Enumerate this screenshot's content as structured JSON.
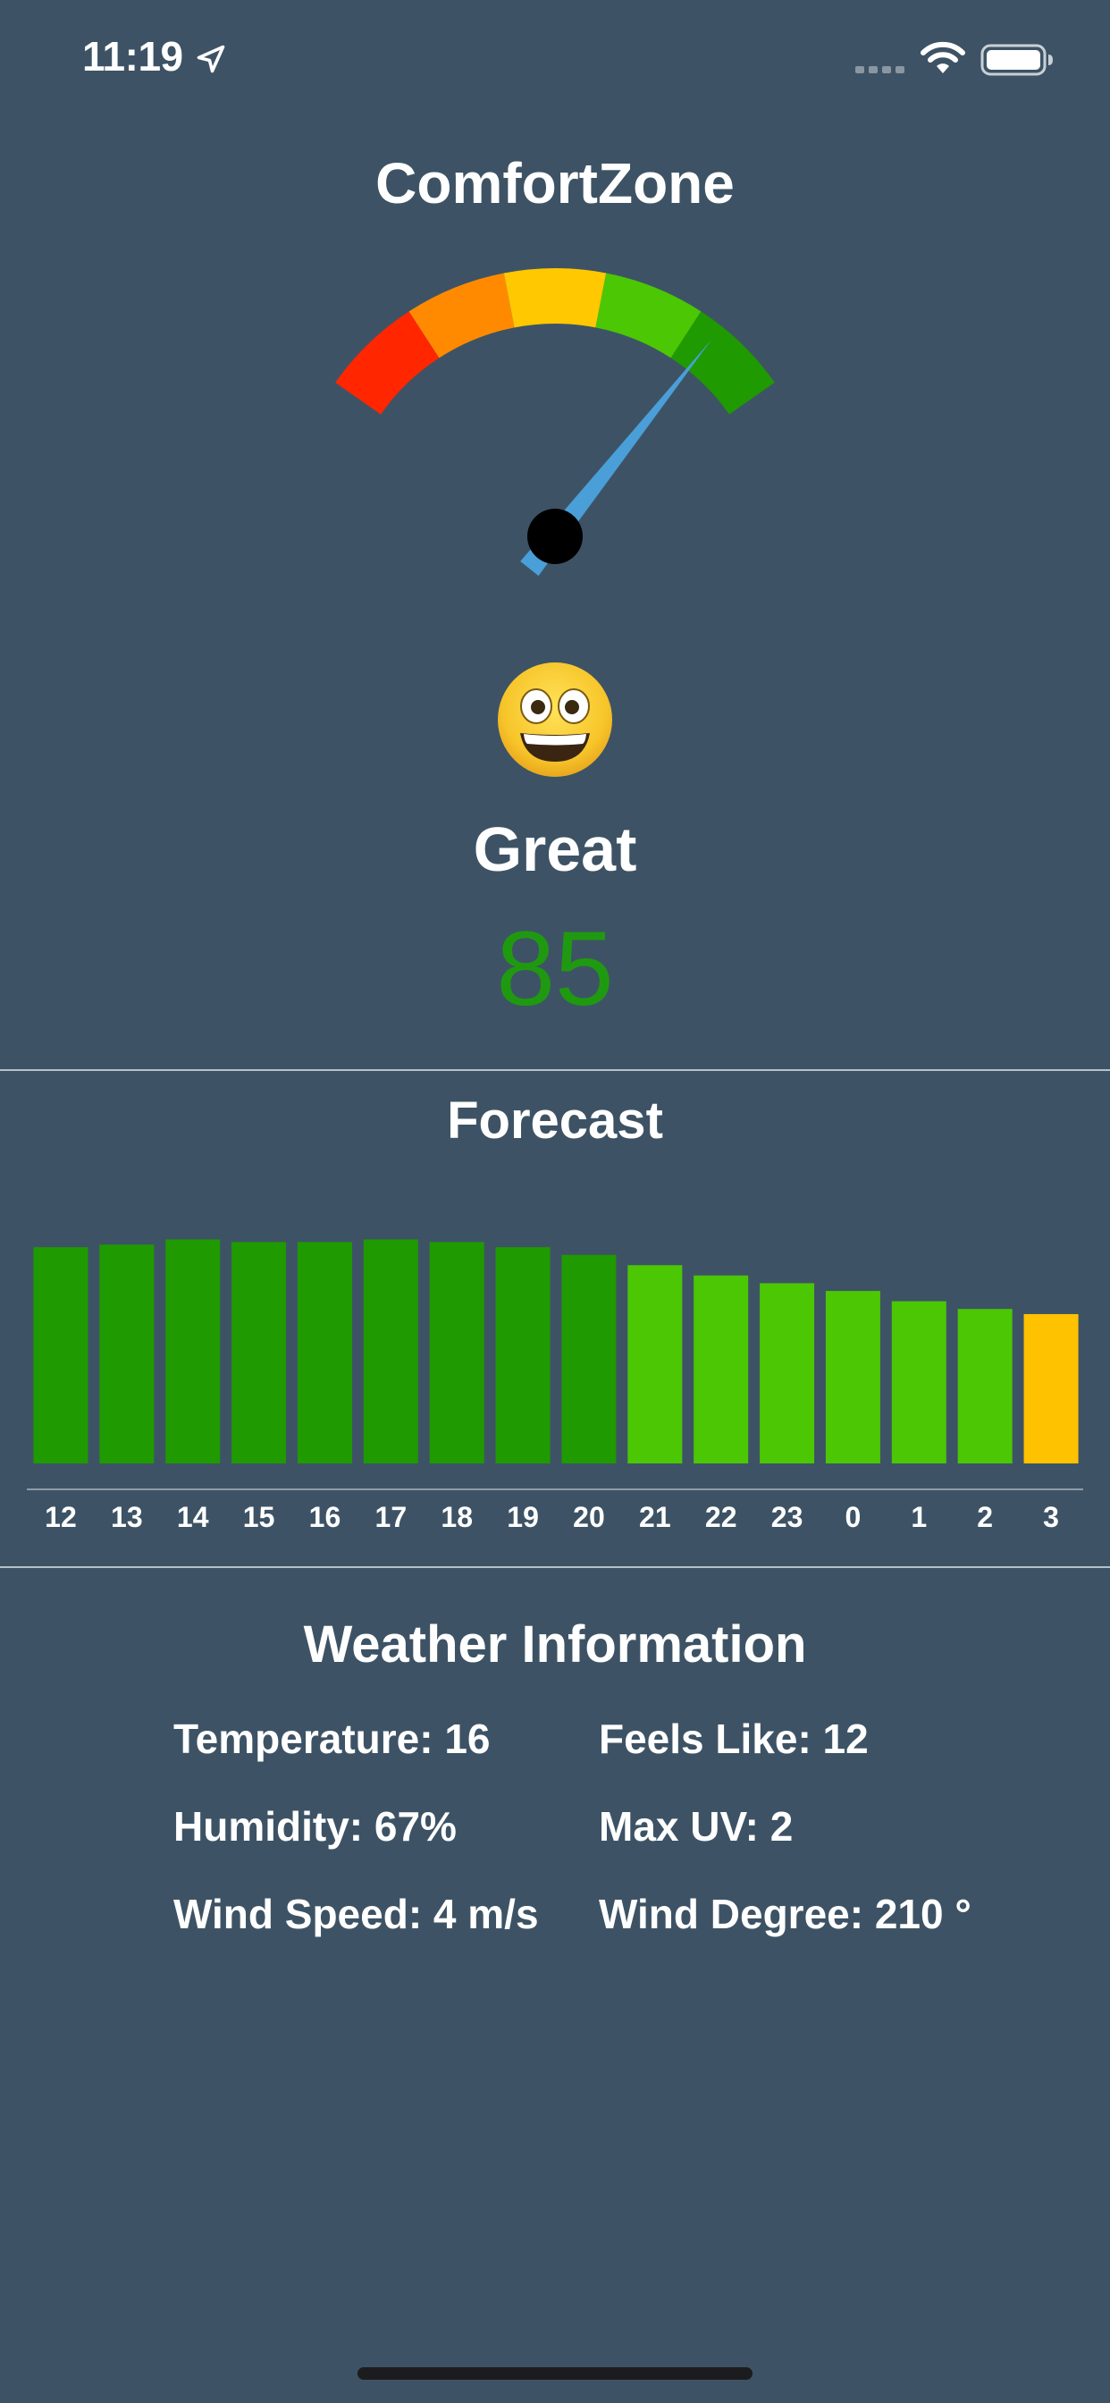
{
  "status_bar": {
    "time": "11:19"
  },
  "app": {
    "title": "ComfortZone"
  },
  "gauge": {
    "value": 85,
    "min": 0,
    "max": 100,
    "segment_colors": [
      "#ff2600",
      "#ff8a00",
      "#ffc800",
      "#4bc704",
      "#1f9a00"
    ],
    "needle_color": "#4a9fd8",
    "hub_color": "#000000"
  },
  "mood": {
    "emoji": "grinning-face",
    "label": "Great",
    "score": "85",
    "score_color": "#1f9a10"
  },
  "forecast": {
    "title": "Forecast"
  },
  "chart_data": {
    "type": "bar",
    "categories": [
      "12",
      "13",
      "14",
      "15",
      "16",
      "17",
      "18",
      "19",
      "20",
      "21",
      "22",
      "23",
      "0",
      "1",
      "2",
      "3"
    ],
    "values": [
      84,
      85,
      87,
      86,
      86,
      87,
      86,
      84,
      81,
      77,
      73,
      70,
      67,
      63,
      60,
      58
    ],
    "colors": [
      "#1f9a00",
      "#1f9a00",
      "#1f9a00",
      "#1f9a00",
      "#1f9a00",
      "#1f9a00",
      "#1f9a00",
      "#1f9a00",
      "#1f9a00",
      "#4bc704",
      "#4bc704",
      "#4bc704",
      "#4bc704",
      "#4bc704",
      "#4bc704",
      "#ffc200"
    ],
    "ylim": [
      0,
      100
    ],
    "grid": false
  },
  "weather": {
    "title": "Weather Information",
    "temperature": "Temperature: 16",
    "feels_like": "Feels Like: 12",
    "humidity": "Humidity: 67%",
    "max_uv": "Max UV: 2",
    "wind_speed": "Wind Speed: 4 m/s",
    "wind_degree": "Wind Degree: 210 °"
  }
}
